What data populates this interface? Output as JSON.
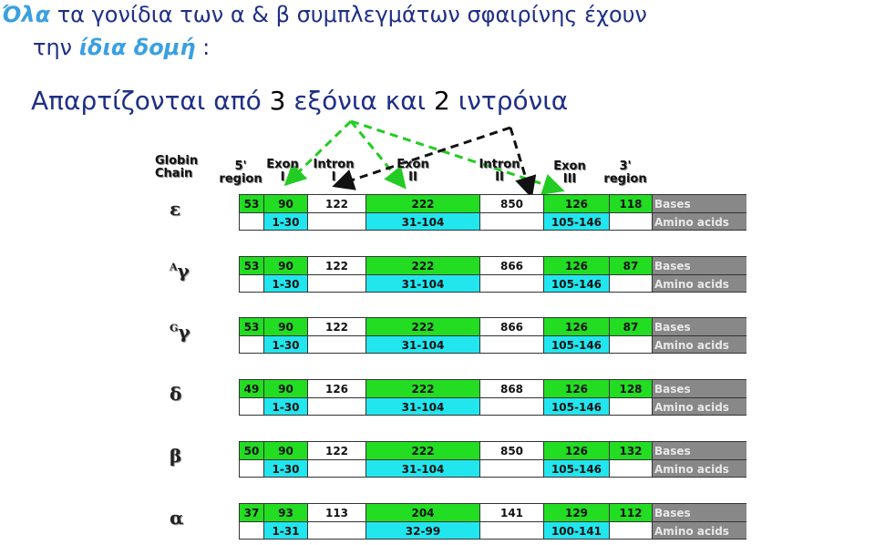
{
  "title": {
    "line1_em": "Όλα",
    "line1_rest": " τα γονίδια των α & β συμπλεγμάτων σφαιρίνης  έχουν",
    "line2_pre": "την ",
    "line2_em": "ίδια δομή",
    "line2_post": " :"
  },
  "subtitle": {
    "pre": "Απαρτίζονται από ",
    "n1": "3",
    "mid": " εξόνια και ",
    "n2": "2",
    "post": " ιντρόνια"
  },
  "headers": {
    "globin": "Globin\nChain",
    "region5": "5'\nregion",
    "exon1": "Exon\nI",
    "intron1": "Intron\nI",
    "exon2": "Exon\nII",
    "intron2": "Intron\nII",
    "exon3": "Exon\nIII",
    "region3": "3'\nregion"
  },
  "legend": {
    "bases": "Bases",
    "amino": "Amino acids"
  },
  "chains": [
    {
      "name": "ε",
      "sup": "",
      "bases": [
        "53",
        "90",
        "122",
        "222",
        "850",
        "126",
        "118"
      ],
      "aa": [
        "1-30",
        "31-104",
        "105-146"
      ]
    },
    {
      "name": "γ",
      "sup": "A",
      "bases": [
        "53",
        "90",
        "122",
        "222",
        "866",
        "126",
        "87"
      ],
      "aa": [
        "1-30",
        "31-104",
        "105-146"
      ]
    },
    {
      "name": "γ",
      "sup": "G",
      "bases": [
        "53",
        "90",
        "122",
        "222",
        "866",
        "126",
        "87"
      ],
      "aa": [
        "1-30",
        "31-104",
        "105-146"
      ]
    },
    {
      "name": "δ",
      "sup": "",
      "bases": [
        "49",
        "90",
        "126",
        "222",
        "868",
        "126",
        "128"
      ],
      "aa": [
        "1-30",
        "31-104",
        "105-146"
      ]
    },
    {
      "name": "β",
      "sup": "",
      "bases": [
        "50",
        "90",
        "122",
        "222",
        "850",
        "126",
        "132"
      ],
      "aa": [
        "1-30",
        "31-104",
        "105-146"
      ]
    },
    {
      "name": "α",
      "sup": "",
      "bases": [
        "37",
        "93",
        "113",
        "204",
        "141",
        "129",
        "112"
      ],
      "aa": [
        "1-31",
        "32-99",
        "100-141"
      ]
    }
  ],
  "colors": {
    "exon_green": "#22dd22",
    "aa_cyan": "#22e6ee",
    "legend_grey": "#888888",
    "title_blue": "#1f2f86",
    "emph_blue": "#3aa0e0"
  }
}
